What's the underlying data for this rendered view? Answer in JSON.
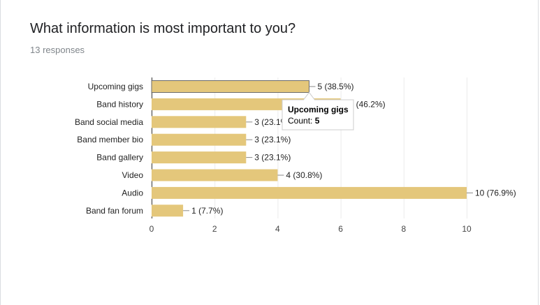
{
  "form": {
    "question": "What information is most important to you?",
    "responses": "13 responses"
  },
  "chart_data": {
    "type": "bar",
    "orientation": "horizontal",
    "categories": [
      "Upcoming gigs",
      "Band history",
      "Band social media",
      "Band member bio",
      "Band gallery",
      "Video",
      "Audio",
      "Band fan forum"
    ],
    "values": [
      5,
      6,
      3,
      3,
      3,
      4,
      10,
      1
    ],
    "data_labels": [
      "5 (38.5%)",
      "6 (46.2%)",
      "3 (23.1%)",
      "3 (23.1%)",
      "3 (23.1%)",
      "4 (30.8%)",
      "10 (76.9%)",
      "1 (7.7%)"
    ],
    "xticks": [
      0,
      2,
      4,
      6,
      8,
      10
    ],
    "xlim": [
      0,
      10
    ],
    "grid": true,
    "bar_color": "#e4c77b",
    "tooltip": {
      "category_index": 0,
      "title": "Upcoming gigs",
      "count_label": "Count: ",
      "count_value": "5"
    }
  }
}
